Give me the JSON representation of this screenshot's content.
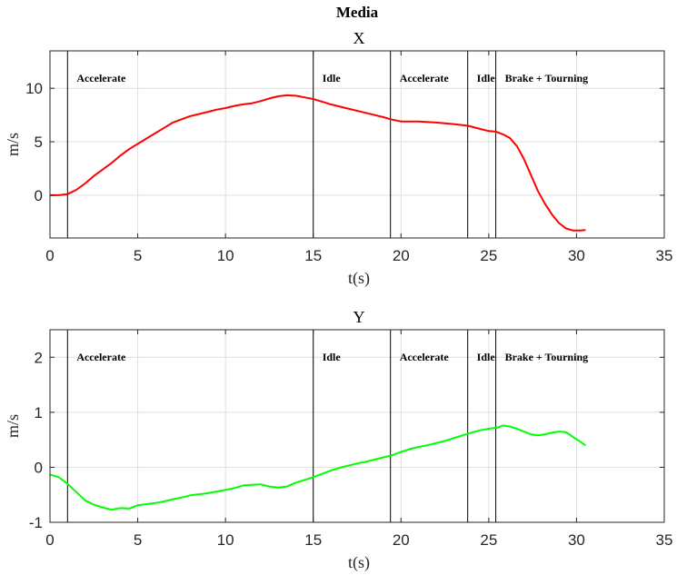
{
  "figure_title": "Media",
  "colors": {
    "plot_x": "#ff0000",
    "plot_y": "#00ff00",
    "axis": "#262626",
    "grid": "#dfdfdf",
    "marker": "#000000"
  },
  "chart_data": [
    {
      "type": "line",
      "title": "X",
      "xlabel": "t(s)",
      "ylabel": "m/s",
      "xlim": [
        0,
        35
      ],
      "ylim": [
        -4,
        13.5
      ],
      "xticks": [
        0,
        5,
        10,
        15,
        20,
        25,
        30,
        35
      ],
      "yticks": [
        0,
        5,
        10
      ],
      "grid": true,
      "events": [
        {
          "t": 1.0,
          "label": "Accelerate"
        },
        {
          "t": 15.0,
          "label": "Idle"
        },
        {
          "t": 19.4,
          "label": "Accelerate"
        },
        {
          "t": 23.8,
          "label": "Idle"
        },
        {
          "t": 25.4,
          "label": "Brake + Tourning"
        }
      ],
      "series": [
        {
          "color": "#ff0000",
          "x": [
            0,
            0.5,
            1.0,
            1.5,
            2.0,
            2.5,
            3.0,
            3.5,
            4.0,
            4.5,
            5.0,
            5.5,
            6.0,
            6.5,
            7.0,
            7.5,
            8.0,
            8.5,
            9.0,
            9.5,
            10.0,
            10.5,
            11.0,
            11.5,
            12.0,
            12.5,
            13.0,
            13.5,
            14.0,
            14.5,
            15.0,
            15.5,
            16.0,
            17.0,
            18.0,
            19.0,
            19.4,
            20.0,
            21.0,
            22.0,
            23.0,
            23.8,
            24.5,
            25.0,
            25.4,
            25.8,
            26.2,
            26.6,
            27.0,
            27.4,
            27.8,
            28.2,
            28.6,
            29.0,
            29.4,
            29.8,
            30.2,
            30.5
          ],
          "y": [
            0.0,
            0.0,
            0.1,
            0.5,
            1.1,
            1.8,
            2.4,
            3.0,
            3.7,
            4.3,
            4.8,
            5.3,
            5.8,
            6.3,
            6.8,
            7.1,
            7.4,
            7.6,
            7.8,
            8.0,
            8.15,
            8.35,
            8.5,
            8.6,
            8.8,
            9.05,
            9.25,
            9.35,
            9.3,
            9.15,
            9.0,
            8.75,
            8.5,
            8.1,
            7.7,
            7.3,
            7.1,
            6.9,
            6.9,
            6.8,
            6.65,
            6.5,
            6.2,
            6.0,
            5.95,
            5.7,
            5.35,
            4.6,
            3.4,
            1.9,
            0.4,
            -0.8,
            -1.8,
            -2.6,
            -3.1,
            -3.3,
            -3.3,
            -3.25
          ]
        }
      ]
    },
    {
      "type": "line",
      "title": "Y",
      "xlabel": "t(s)",
      "ylabel": "m/s",
      "xlim": [
        0,
        35
      ],
      "ylim": [
        -1,
        2.5
      ],
      "xticks": [
        0,
        5,
        10,
        15,
        20,
        25,
        30,
        35
      ],
      "yticks": [
        -1,
        0,
        1,
        2
      ],
      "grid": true,
      "events": [
        {
          "t": 1.0,
          "label": "Accelerate"
        },
        {
          "t": 15.0,
          "label": "Idle"
        },
        {
          "t": 19.4,
          "label": "Accelerate"
        },
        {
          "t": 23.8,
          "label": "Idle"
        },
        {
          "t": 25.4,
          "label": "Brake + Tourning"
        }
      ],
      "series": [
        {
          "color": "#00ff00",
          "x": [
            0,
            0.5,
            1.0,
            1.5,
            2.0,
            2.5,
            3.0,
            3.5,
            4.0,
            4.5,
            5.0,
            5.5,
            6.0,
            6.5,
            7.0,
            7.5,
            8.0,
            8.5,
            9.0,
            9.5,
            10.0,
            10.5,
            11.0,
            11.5,
            12.0,
            12.5,
            13.0,
            13.5,
            14.0,
            14.5,
            15.0,
            15.5,
            16.0,
            16.5,
            17.0,
            17.5,
            18.0,
            18.5,
            19.0,
            19.5,
            20.0,
            20.5,
            21.0,
            21.5,
            22.0,
            22.5,
            23.0,
            23.5,
            24.0,
            24.5,
            25.0,
            25.5,
            25.8,
            26.2,
            26.6,
            27.0,
            27.4,
            27.8,
            28.2,
            28.6,
            29.0,
            29.4,
            29.8,
            30.2,
            30.5
          ],
          "y": [
            -0.13,
            -0.18,
            -0.3,
            -0.45,
            -0.6,
            -0.68,
            -0.73,
            -0.77,
            -0.74,
            -0.75,
            -0.69,
            -0.67,
            -0.65,
            -0.62,
            -0.58,
            -0.55,
            -0.51,
            -0.49,
            -0.47,
            -0.44,
            -0.41,
            -0.38,
            -0.33,
            -0.32,
            -0.31,
            -0.35,
            -0.37,
            -0.35,
            -0.28,
            -0.23,
            -0.18,
            -0.12,
            -0.06,
            -0.01,
            0.03,
            0.07,
            0.1,
            0.14,
            0.18,
            0.22,
            0.28,
            0.33,
            0.37,
            0.4,
            0.44,
            0.48,
            0.53,
            0.58,
            0.63,
            0.67,
            0.7,
            0.72,
            0.76,
            0.74,
            0.7,
            0.65,
            0.6,
            0.58,
            0.6,
            0.63,
            0.65,
            0.64,
            0.55,
            0.47,
            0.4
          ]
        }
      ]
    }
  ]
}
